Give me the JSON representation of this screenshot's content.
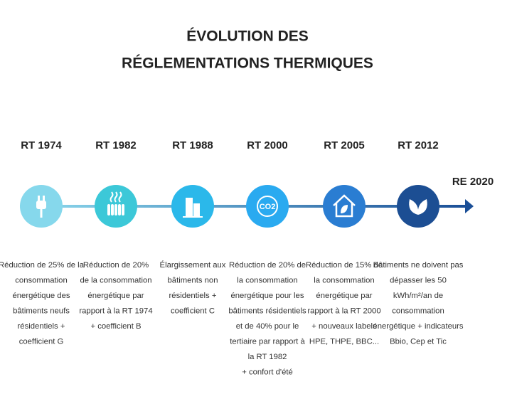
{
  "header": {
    "title_lines": [
      "ÉVOLUTION DES",
      "RÉGLEMENTATIONS THERMIQUES"
    ]
  },
  "timeline": {
    "items": [
      {
        "label": "RT 1974",
        "description": [
          "Réduction de 25% de la",
          "consommation",
          "énergétique des",
          "bâtiments neufs",
          "résidentiels +",
          "coefficient G"
        ]
      },
      {
        "label": "RT 1982",
        "description": [
          "Réduction de 20%",
          "de la consommation",
          "énergétique par",
          "rapport à la RT 1974",
          "+ coefficient B"
        ]
      },
      {
        "label": "RT 1988",
        "description": [
          "Élargissement aux",
          "bâtiments non",
          "résidentiels +",
          "coefficient C"
        ]
      },
      {
        "label": "RT 2000",
        "description": [
          "Réduction de 20% de",
          "la consommation",
          "énergétique pour les",
          "bâtiments résidentiels",
          "et de 40% pour le",
          "tertiaire par rapport à",
          "la RT 1982",
          "+ confort d'été"
        ]
      },
      {
        "label": "RT 2005",
        "description": [
          "Réduction de 15% de",
          "la consommation",
          "énergétique par",
          "rapport à la RT 2000",
          "+ nouveaux labels",
          "HPE, THPE, BBC..."
        ]
      },
      {
        "label": "RT 2012",
        "description": [
          "Bâtiments ne doivent pas",
          "dépasser les 50",
          "kWh/m²/an de",
          "consommation",
          "énergétique + indicateurs",
          "Bbio, Cep et Tic"
        ]
      }
    ],
    "end_label": "RE 2020",
    "icon_text": "CO2"
  }
}
